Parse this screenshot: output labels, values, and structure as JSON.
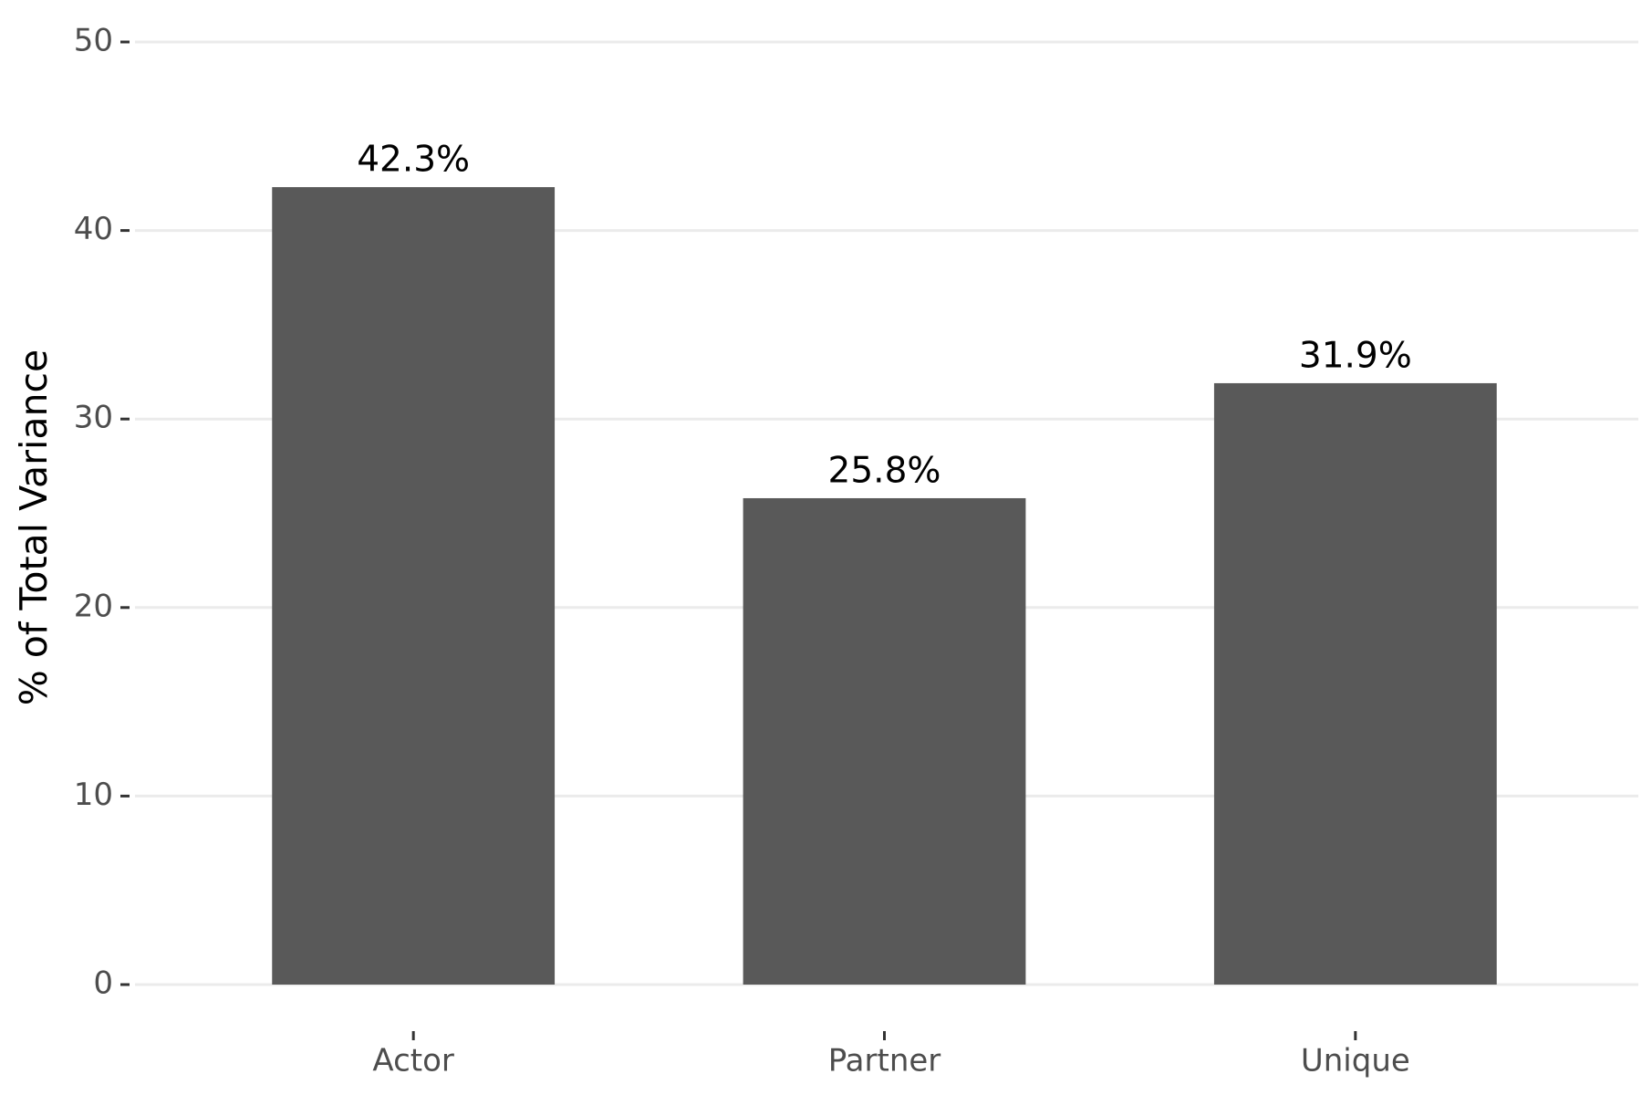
{
  "chart_data": {
    "type": "bar",
    "y_label": "% of Total Variance",
    "categories": [
      "Actor",
      "Partner",
      "Unique"
    ],
    "values": [
      42.3,
      25.8,
      31.9
    ],
    "value_labels": [
      "42.3%",
      "25.8%",
      "31.9%"
    ],
    "color": "#595959",
    "ylim": [
      0,
      50
    ],
    "yticks": [
      0,
      10,
      20,
      30,
      40,
      50
    ],
    "grid": true
  }
}
